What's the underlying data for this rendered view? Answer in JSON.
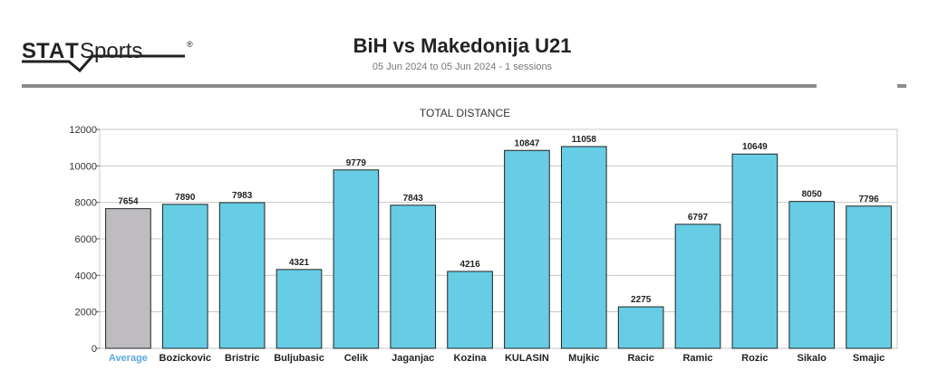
{
  "brand": {
    "name": "STATSports",
    "reg_mark": "®"
  },
  "header": {
    "title": "BiH vs Makedonija U21",
    "subtitle": "05 Jun 2024 to 05 Jun 2024 - 1 sessions"
  },
  "colors": {
    "bar": "#66cde5",
    "average_bar": "#bebcc0",
    "average_label": "#5aa9dd",
    "grid": "#c8c8c8",
    "rule": "#8c8c8c"
  },
  "chart_data": {
    "type": "bar",
    "title": "TOTAL DISTANCE",
    "categories": [
      "Average",
      "Bozickovic",
      "Bristric",
      "Buljubasic",
      "Celik",
      "Jaganjac",
      "Kozina",
      "KULASIN",
      "Mujkic",
      "Racic",
      "Ramic",
      "Rozic",
      "Sikalo",
      "Smajic"
    ],
    "values": [
      7654,
      7890,
      7983,
      4321,
      9779,
      7843,
      4216,
      10847,
      11058,
      2275,
      6797,
      10649,
      8050,
      7796
    ],
    "highlight_category": "Average",
    "ylim": [
      0,
      12000
    ],
    "yticks": [
      0,
      2000,
      4000,
      6000,
      8000,
      10000,
      12000
    ],
    "grid": true,
    "legend": "none"
  }
}
